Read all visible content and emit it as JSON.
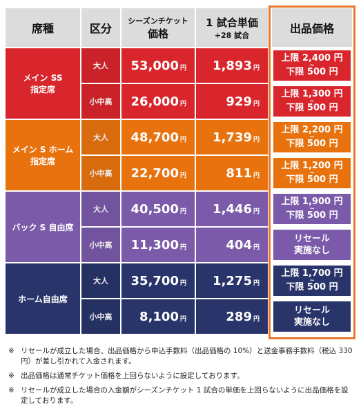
{
  "header": {
    "seat": "席種",
    "class": "区分",
    "season": [
      "シーズンチケット",
      "価格"
    ],
    "single": [
      "1 試合単価",
      "÷28 試合"
    ],
    "resale": "出品価格"
  },
  "unit": "円",
  "groups": [
    {
      "seat": [
        "メイン SS",
        "指定席"
      ],
      "color": "#d8262c",
      "rows": [
        {
          "class": "大人",
          "season": "53,000",
          "single": "1,893",
          "resale": {
            "upper": "上限 2,400 円",
            "sep": "~",
            "lower": "下限 500 円"
          }
        },
        {
          "class": "小中高",
          "season": "26,000",
          "single": "929",
          "resale": {
            "upper": "上限 1,300 円",
            "sep": "~",
            "lower": "下限 500 円"
          }
        }
      ]
    },
    {
      "seat": [
        "メイン S ホーム",
        "指定席"
      ],
      "color": "#e8730e",
      "rows": [
        {
          "class": "大人",
          "season": "48,700",
          "single": "1,739",
          "resale": {
            "upper": "上限 2,200 円",
            "sep": "~",
            "lower": "下限 500 円"
          }
        },
        {
          "class": "小中高",
          "season": "22,700",
          "single": "811",
          "resale": {
            "upper": "上限 1,200 円",
            "sep": "~",
            "lower": "下限 500 円"
          }
        }
      ]
    },
    {
      "seat": [
        "バック S 自由席"
      ],
      "color": "#7a5aa9",
      "rows": [
        {
          "class": "大人",
          "season": "40,500",
          "single": "1,446",
          "resale": {
            "upper": "上限 1,900 円",
            "sep": "~",
            "lower": "下限 500 円"
          }
        },
        {
          "class": "小中高",
          "season": "11,300",
          "single": "404",
          "resale": {
            "lines": [
              "リセール",
              "実施なし"
            ]
          }
        }
      ]
    },
    {
      "seat": [
        "ホーム自由席"
      ],
      "color": "#28346a",
      "rows": [
        {
          "class": "大人",
          "season": "35,700",
          "single": "1,275",
          "resale": {
            "upper": "上限 1,700 円",
            "sep": "~",
            "lower": "下限 500 円"
          }
        },
        {
          "class": "小中高",
          "season": "8,100",
          "single": "289",
          "resale": {
            "lines": [
              "リセール",
              "実施なし"
            ]
          }
        }
      ]
    }
  ],
  "notes": [
    {
      "mark": "※",
      "text": "リセールが成立した場合、出品価格から申込手数料（出品価格の 10%）と送金事務手数料（税込 330 円）が差し引かれて入金されます。"
    },
    {
      "mark": "※",
      "text": "出品価格は通常チケット価格を上回らないように設定しております。"
    },
    {
      "mark": "※",
      "text": "リセールが成立した場合の入金額がシーズンチケット 1 試合の単価を上回らないように出品価格を設定しております。"
    }
  ]
}
